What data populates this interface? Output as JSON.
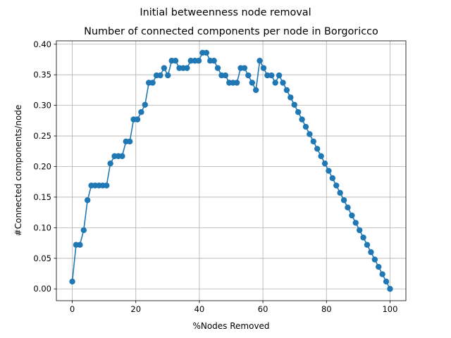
{
  "chart_data": {
    "type": "line",
    "title": "Initial betweenness node removal",
    "subtitle": "Number of connected components per node in Borgoricco",
    "xlabel": "%Nodes Removed",
    "ylabel": "#Connected components/node",
    "xlim": [
      -5,
      105
    ],
    "ylim": [
      -0.0193,
      0.4055
    ],
    "x_ticks": [
      0,
      20,
      40,
      60,
      80,
      100
    ],
    "y_ticks": [
      0.0,
      0.05,
      0.1,
      0.15,
      0.2,
      0.25,
      0.3,
      0.35,
      0.4
    ],
    "x_tick_labels": [
      "0",
      "20",
      "40",
      "60",
      "80",
      "100"
    ],
    "y_tick_labels": [
      "0.00",
      "0.05",
      "0.10",
      "0.15",
      "0.20",
      "0.25",
      "0.30",
      "0.35",
      "0.40"
    ],
    "grid": true,
    "marker": "circle",
    "series": [
      {
        "color": "#1f77b4",
        "x": [
          0,
          1.2,
          2.4,
          3.6,
          4.8,
          6.0,
          7.2,
          8.4,
          9.6,
          10.8,
          12.0,
          13.3,
          14.5,
          15.7,
          16.9,
          18.1,
          19.3,
          20.5,
          21.7,
          22.9,
          24.1,
          25.3,
          26.5,
          27.7,
          28.9,
          30.1,
          31.3,
          32.5,
          33.7,
          34.9,
          36.1,
          37.3,
          38.6,
          39.8,
          41.0,
          42.2,
          43.4,
          44.6,
          45.8,
          47.0,
          48.2,
          49.4,
          50.6,
          51.8,
          53.0,
          54.2,
          55.4,
          56.6,
          57.8,
          59.0,
          60.2,
          61.4,
          62.7,
          63.9,
          65.1,
          66.3,
          67.5,
          68.7,
          69.9,
          71.1,
          72.3,
          73.5,
          74.7,
          75.9,
          77.1,
          78.3,
          79.5,
          80.7,
          81.9,
          83.1,
          84.3,
          85.5,
          86.7,
          88.0,
          89.2,
          90.4,
          91.6,
          92.8,
          94.0,
          95.2,
          96.4,
          97.6,
          98.8,
          100.0
        ],
        "y": [
          0.012,
          0.072,
          0.072,
          0.096,
          0.145,
          0.169,
          0.169,
          0.169,
          0.169,
          0.169,
          0.205,
          0.217,
          0.217,
          0.217,
          0.241,
          0.241,
          0.277,
          0.277,
          0.289,
          0.301,
          0.337,
          0.337,
          0.349,
          0.349,
          0.361,
          0.349,
          0.373,
          0.373,
          0.361,
          0.361,
          0.361,
          0.373,
          0.373,
          0.373,
          0.386,
          0.386,
          0.373,
          0.373,
          0.361,
          0.349,
          0.349,
          0.337,
          0.337,
          0.337,
          0.361,
          0.361,
          0.349,
          0.337,
          0.325,
          0.373,
          0.361,
          0.349,
          0.349,
          0.337,
          0.349,
          0.337,
          0.325,
          0.313,
          0.301,
          0.289,
          0.277,
          0.265,
          0.253,
          0.241,
          0.229,
          0.217,
          0.205,
          0.193,
          0.181,
          0.169,
          0.157,
          0.145,
          0.133,
          0.12,
          0.108,
          0.096,
          0.084,
          0.072,
          0.06,
          0.048,
          0.036,
          0.024,
          0.012,
          0.0
        ]
      }
    ]
  }
}
